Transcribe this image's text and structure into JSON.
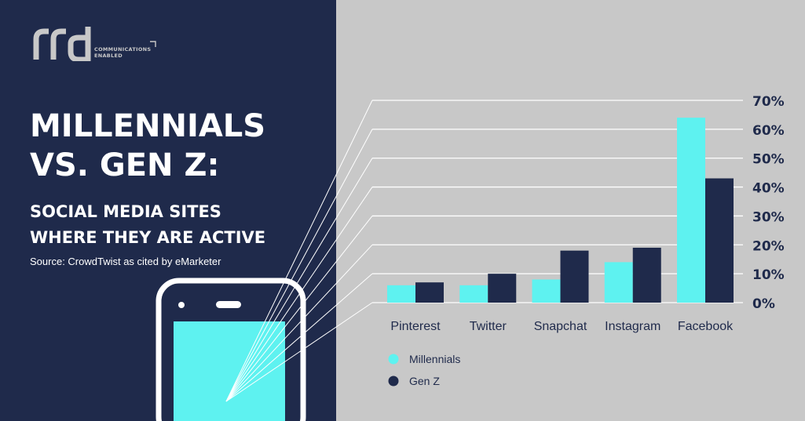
{
  "brand": {
    "logo_text": "rrd",
    "tagline_line1": "COMMUNICATIONS",
    "tagline_line2": "ENABLED"
  },
  "header": {
    "title_line1": "MILLENNIALS",
    "title_line2": "VS. GEN Z:",
    "subtitle_line1": "SOCIAL MEDIA SITES",
    "subtitle_line2": "WHERE THEY ARE ACTIVE",
    "source": "Source: CrowdTwist as cited by eMarketer"
  },
  "colors": {
    "panel_dark": "#1f2a4b",
    "panel_light": "#c8c8c8",
    "millennials": "#5ef2f0",
    "genz": "#1f2a4b",
    "phone_screen": "#5ef2f0"
  },
  "icons": [
    "phone-icon"
  ],
  "chart_data": {
    "type": "bar",
    "categories": [
      "Pinterest",
      "Twitter",
      "Snapchat",
      "Instagram",
      "Facebook"
    ],
    "series": [
      {
        "name": "Millennials",
        "values": [
          6,
          6,
          8,
          14,
          64
        ]
      },
      {
        "name": "Gen Z",
        "values": [
          7,
          10,
          18,
          19,
          43
        ]
      }
    ],
    "y_ticks": [
      "0%",
      "10%",
      "20%",
      "30%",
      "40%",
      "50%",
      "60%",
      "70%"
    ],
    "ylim": [
      0,
      70
    ],
    "grid": true,
    "legend_placement": "bottom-left"
  }
}
